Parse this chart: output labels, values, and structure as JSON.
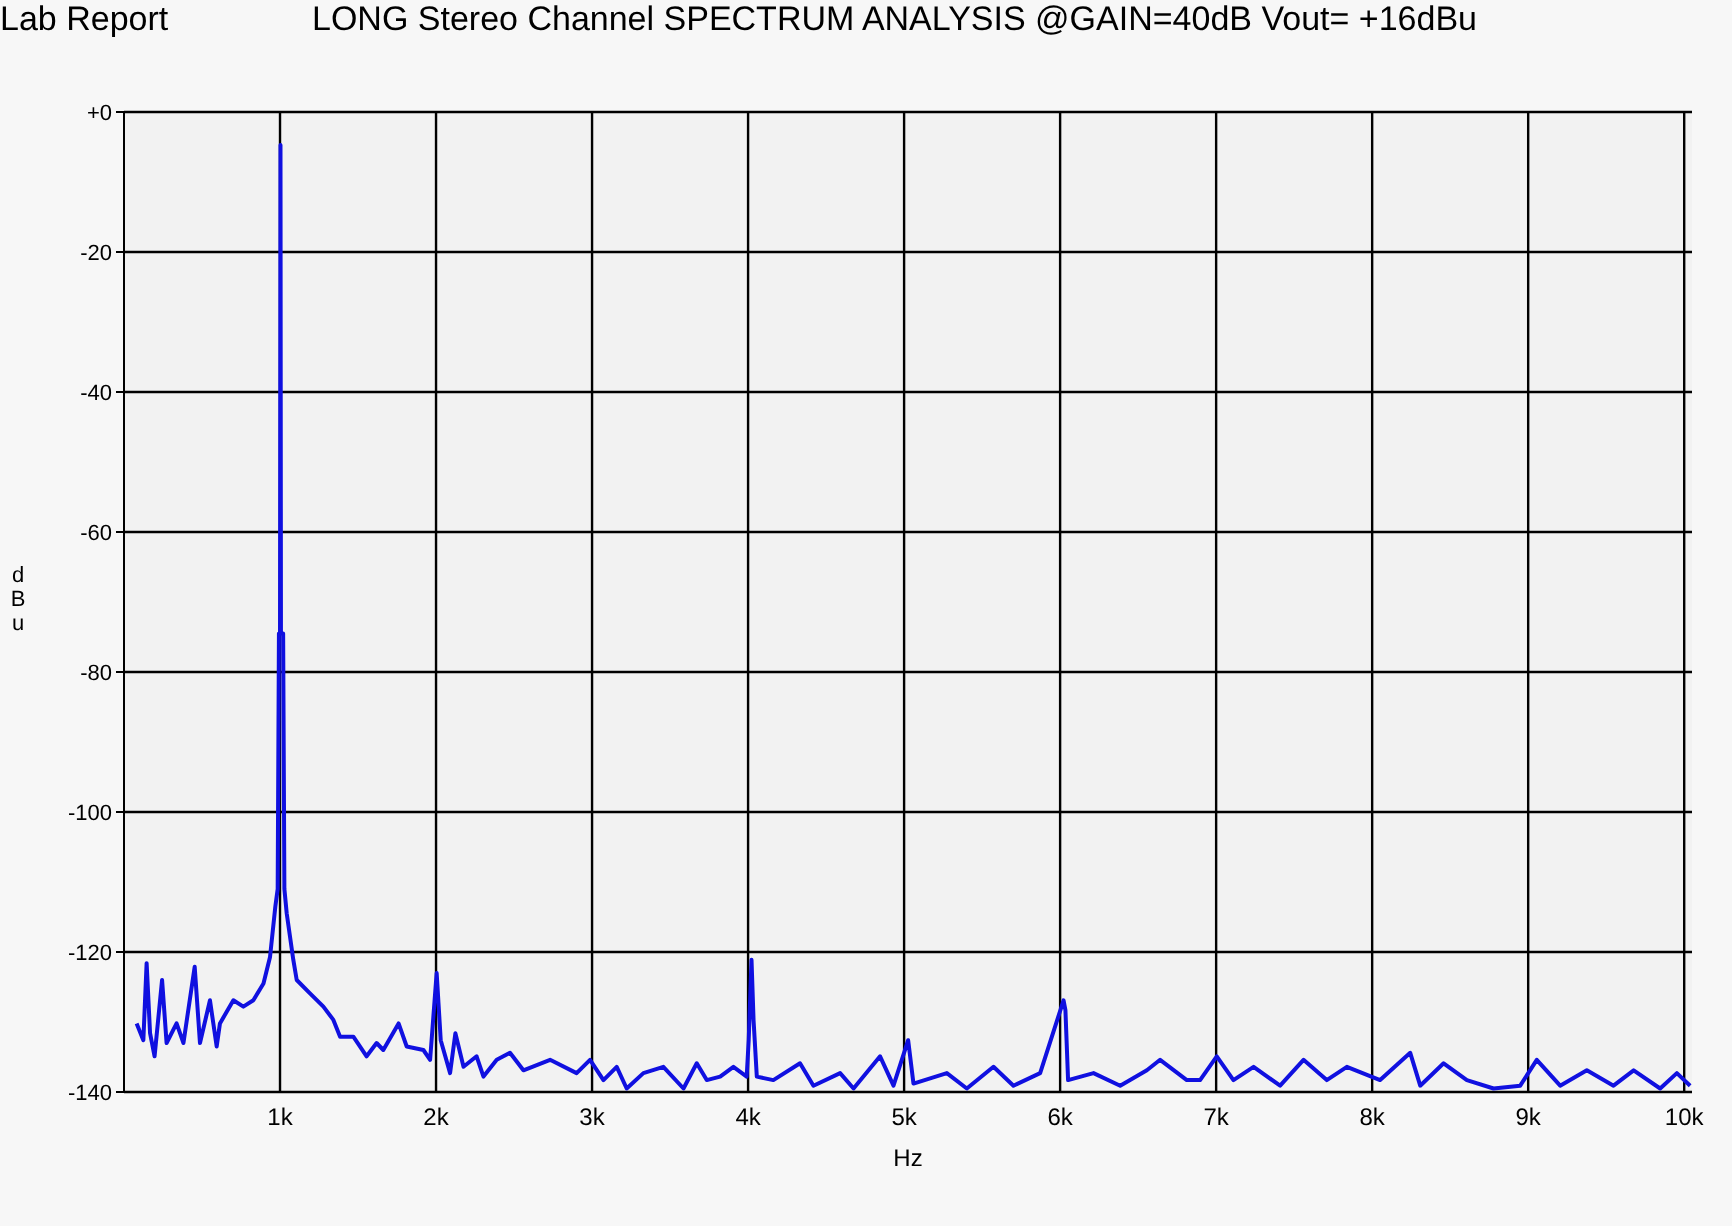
{
  "chart_data": {
    "type": "line",
    "title": "LONG Stereo Channel SPECTRUM ANALYSIS @GAIN=40dB Vout= +16dBu",
    "annotations": [
      "Lab Report"
    ],
    "xlabel": "Hz",
    "ylabel": "dBu",
    "x": [
      81,
      124,
      145,
      167,
      196,
      244,
      273,
      337,
      381,
      453,
      487,
      551,
      594,
      615,
      701,
      765,
      829,
      894,
      936,
      970,
      985,
      993,
      1000,
      1003,
      1006,
      1010,
      1020,
      1028,
      1043,
      1085,
      1107,
      1192,
      1278,
      1342,
      1385,
      1470,
      1555,
      1619,
      1662,
      1760,
      1812,
      1919,
      1962,
      2004,
      2030,
      2090,
      2124,
      2176,
      2260,
      2304,
      2389,
      2474,
      2560,
      2731,
      2901,
      2987,
      3073,
      3158,
      3222,
      3329,
      3457,
      3586,
      3671,
      3735,
      3821,
      3906,
      3991,
      4004,
      4022,
      4035,
      4056,
      4162,
      4333,
      4419,
      4590,
      4676,
      4846,
      4932,
      5026,
      5060,
      5274,
      5402,
      5573,
      5701,
      5872,
      6022,
      6034,
      6051,
      6214,
      6385,
      6556,
      6641,
      6812,
      6897,
      7004,
      7111,
      7240,
      7410,
      7560,
      7709,
      7838,
      8051,
      8244,
      8308,
      8458,
      8607,
      8778,
      8949,
      9055,
      9205,
      9376,
      9547,
      9676,
      9846,
      9953,
      10038
    ],
    "series": [
      {
        "color": "#1010e0",
        "values": [
          -130.2,
          -132.6,
          -121.6,
          -131.6,
          -134.9,
          -124,
          -133,
          -130.2,
          -133,
          -122.1,
          -133,
          -126.9,
          -133.5,
          -130.2,
          -126.9,
          -127.8,
          -126.9,
          -124.5,
          -120.7,
          -113.5,
          -111,
          -74.5,
          -74.5,
          -4.7,
          -74.5,
          -74.5,
          -74.5,
          -111,
          -114.5,
          -121.1,
          -124,
          -125.9,
          -127.8,
          -129.7,
          -132.1,
          -132.1,
          -134.9,
          -133,
          -134,
          -130.2,
          -133.5,
          -134,
          -135.4,
          -123,
          -132.6,
          -137.3,
          -131.6,
          -136.4,
          -134.9,
          -137.8,
          -135.4,
          -134.4,
          -136.9,
          -135.4,
          -137.3,
          -135.4,
          -138.3,
          -136.4,
          -139.5,
          -137.3,
          -136.4,
          -139.5,
          -135.9,
          -138.3,
          -137.8,
          -136.4,
          -137.8,
          -132.6,
          -121.1,
          -129.7,
          -137.8,
          -138.3,
          -135.9,
          -139.1,
          -137.3,
          -139.5,
          -134.9,
          -139.1,
          -132.6,
          -138.8,
          -137.3,
          -139.5,
          -136.4,
          -139.1,
          -137.3,
          -126.9,
          -128.3,
          -138.3,
          -137.3,
          -139.1,
          -136.9,
          -135.4,
          -138.3,
          -138.3,
          -134.9,
          -138.3,
          -136.4,
          -139.1,
          -135.4,
          -138.3,
          -136.4,
          -138.3,
          -134.4,
          -139.1,
          -135.9,
          -138.3,
          -139.5,
          -139.1,
          -135.4,
          -139.1,
          -136.9,
          -139.1,
          -136.9,
          -139.5,
          -137.3,
          -139.1
        ]
      }
    ],
    "xlim": [
      0,
      10050
    ],
    "ylim": [
      -140,
      0
    ],
    "xticks": [
      {
        "value": 1000,
        "label": "1k"
      },
      {
        "value": 2000,
        "label": "2k"
      },
      {
        "value": 3000,
        "label": "3k"
      },
      {
        "value": 4000,
        "label": "4k"
      },
      {
        "value": 5000,
        "label": "5k"
      },
      {
        "value": 6000,
        "label": "6k"
      },
      {
        "value": 7000,
        "label": "7k"
      },
      {
        "value": 8000,
        "label": "8k"
      },
      {
        "value": 9000,
        "label": "9k"
      },
      {
        "value": 10000,
        "label": "10k"
      }
    ],
    "yticks": [
      -140,
      -120,
      -100,
      -80,
      -60,
      -40,
      -20,
      {
        "value": 0,
        "label": "+0"
      }
    ],
    "grid": true,
    "legend": false,
    "marker": "none",
    "line_style": "solid"
  }
}
